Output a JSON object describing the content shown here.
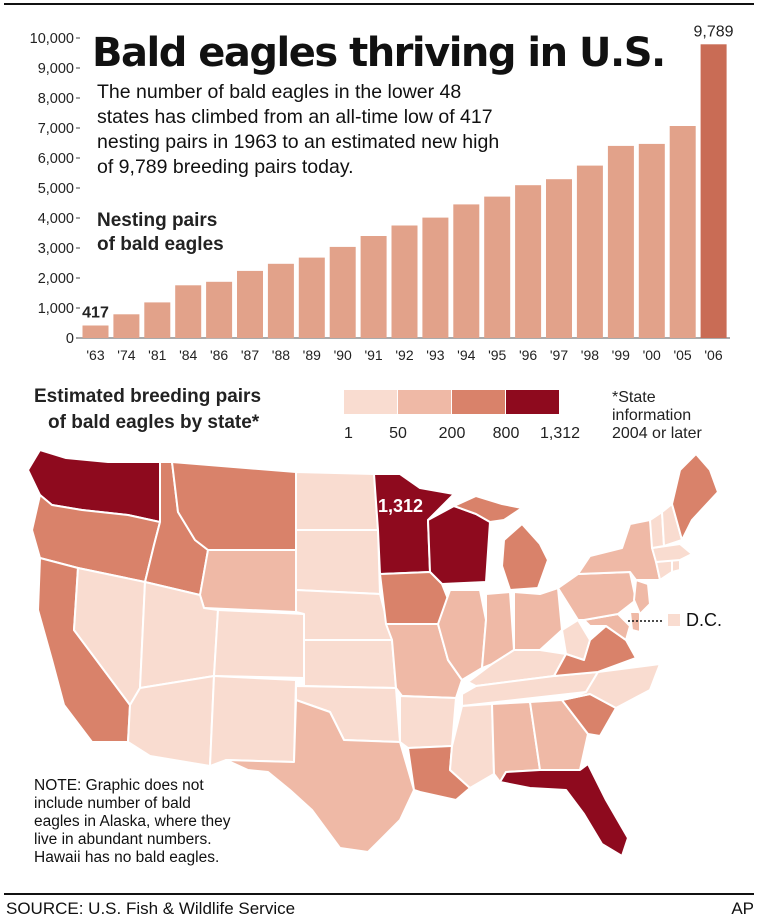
{
  "title": "Bald eagles thriving in U.S.",
  "intro_lines": [
    "The number of bald eagles in the lower 48",
    "states has climbed from an all-time low of 417",
    "nesting pairs in 1963 to an estimated new high",
    "of 9,789 breeding pairs today."
  ],
  "chart_data": [
    {
      "type": "bar",
      "ylabel_lines": [
        "Nesting pairs",
        "of bald eagles"
      ],
      "categories": [
        "'63",
        "'74",
        "'81",
        "'84",
        "'86",
        "'87",
        "'88",
        "'89",
        "'90",
        "'91",
        "'92",
        "'93",
        "'94",
        "'95",
        "'96",
        "'97",
        "'98",
        "'99",
        "'00",
        "'05",
        "'06"
      ],
      "values": [
        417,
        791,
        1188,
        1757,
        1875,
        2238,
        2475,
        2680,
        3035,
        3399,
        3749,
        4015,
        4452,
        4712,
        5094,
        5295,
        5748,
        6404,
        6471,
        7066,
        9789
      ],
      "ylim": [
        0,
        10000
      ],
      "yticks": [
        0,
        1000,
        2000,
        3000,
        4000,
        5000,
        6000,
        7000,
        8000,
        9000,
        10000
      ],
      "ytick_labels": [
        "0",
        "1,000",
        "2,000",
        "3,000",
        "4,000",
        "5,000",
        "6,000",
        "7,000",
        "8,000",
        "9,000",
        "10,000"
      ],
      "data_labels": [
        {
          "category": "'63",
          "label": "417"
        },
        {
          "category": "'06",
          "label": "9,789"
        }
      ],
      "colors": {
        "bar": "#e2a28a",
        "highlight": "#c96c55"
      }
    },
    {
      "type": "heatmap",
      "title_lines": [
        "Estimated breeding pairs",
        "of bald eagles by state*"
      ],
      "legend_bins": [
        {
          "color": "#f9dcd0"
        },
        {
          "color": "#efb9a6"
        },
        {
          "color": "#d9826a"
        },
        {
          "color": "#8e0a1e"
        }
      ],
      "legend_labels": [
        "1",
        "50",
        "200",
        "800",
        "1,312"
      ],
      "footnote_lines": [
        "*State",
        "information",
        "2004 or later"
      ],
      "max_label": "1,312",
      "dc_label": "D.C."
    }
  ],
  "note_lines": [
    "NOTE: Graphic does not",
    "include number of bald",
    "eagles in Alaska, where they",
    "live in abundant numbers.",
    "Hawaii has no bald eagles."
  ],
  "source": "SOURCE: U.S. Fish & Wildlife Service",
  "credit": "AP"
}
